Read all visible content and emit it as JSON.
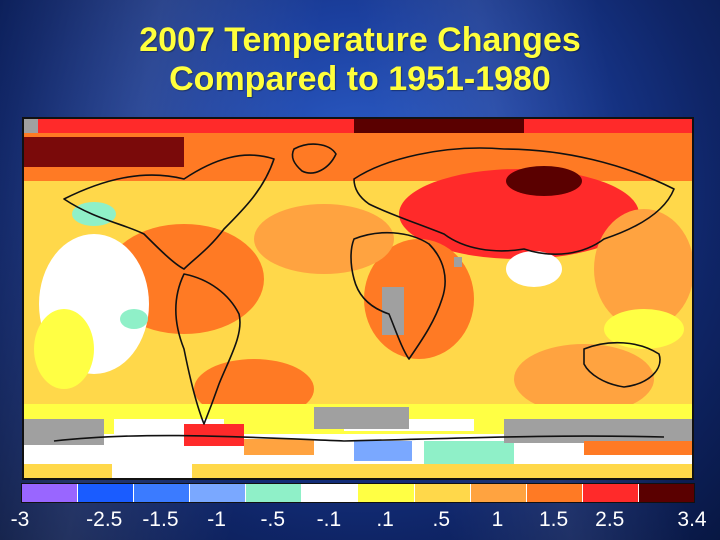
{
  "title": {
    "line1": "2007 Temperature Changes",
    "line2": "Compared to 1951-1980"
  },
  "map": {
    "projection": "equirectangular",
    "missing_data_color": "#a0a0a0",
    "land_outline_color": "#111111"
  },
  "legend": {
    "colors": [
      "#9966ff",
      "#1a5cff",
      "#3b7bff",
      "#7aa8ff",
      "#8ff0c8",
      "#ffffff",
      "#ffff44",
      "#ffd84a",
      "#ffa340",
      "#ff7a24",
      "#ff2a2a",
      "#5a0000"
    ],
    "labels": [
      "-3",
      "-2.5",
      "-1.5",
      "-1",
      "-.5",
      "-.1",
      ".1",
      ".5",
      "1",
      "1.5",
      "2.5",
      "3.4"
    ]
  }
}
